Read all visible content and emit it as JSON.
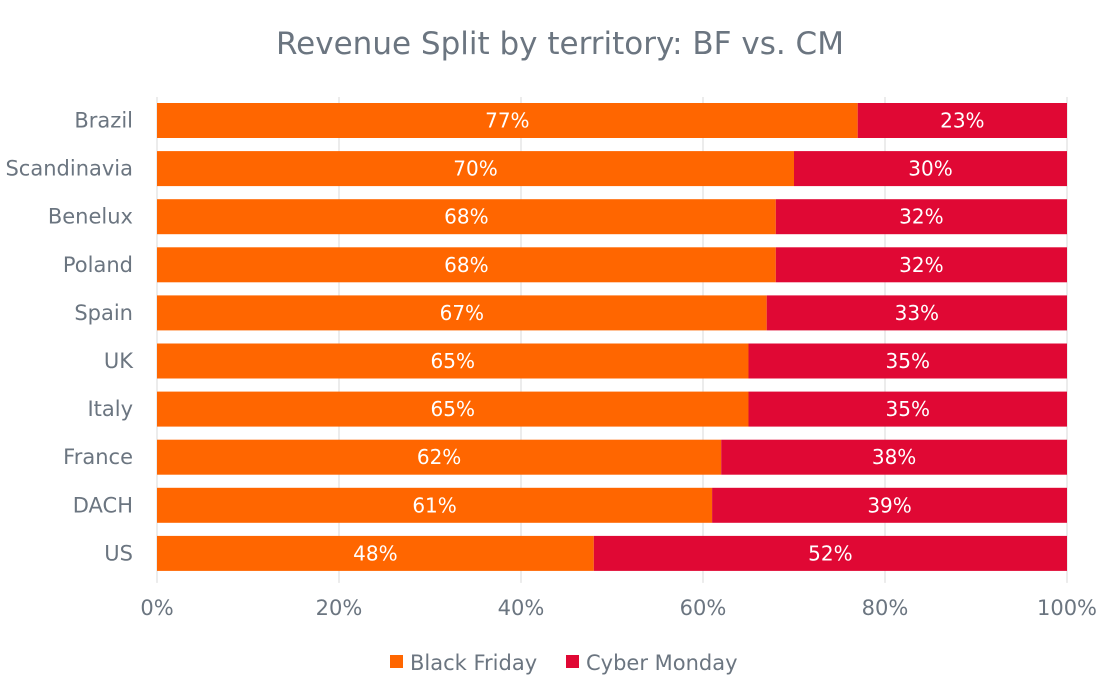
{
  "chart_data": {
    "type": "bar",
    "orientation": "horizontal",
    "stacked": "percent",
    "title": "Revenue Split by territory: BF vs. CM",
    "categories": [
      "Brazil",
      "Scandinavia",
      "Benelux",
      "Poland",
      "Spain",
      "UK",
      "Italy",
      "France",
      "DACH",
      "US"
    ],
    "series": [
      {
        "name": "Black Friday",
        "color": "#ff6600",
        "values": [
          77,
          70,
          68,
          68,
          67,
          65,
          65,
          62,
          61,
          48
        ]
      },
      {
        "name": "Cyber Monday",
        "color": "#e00834",
        "values": [
          23,
          30,
          32,
          32,
          33,
          35,
          35,
          38,
          39,
          52
        ]
      }
    ],
    "xlim": [
      0,
      100
    ],
    "xticks": [
      "0%",
      "20%",
      "40%",
      "60%",
      "80%",
      "100%"
    ],
    "grid": true,
    "legend": "bottom"
  }
}
